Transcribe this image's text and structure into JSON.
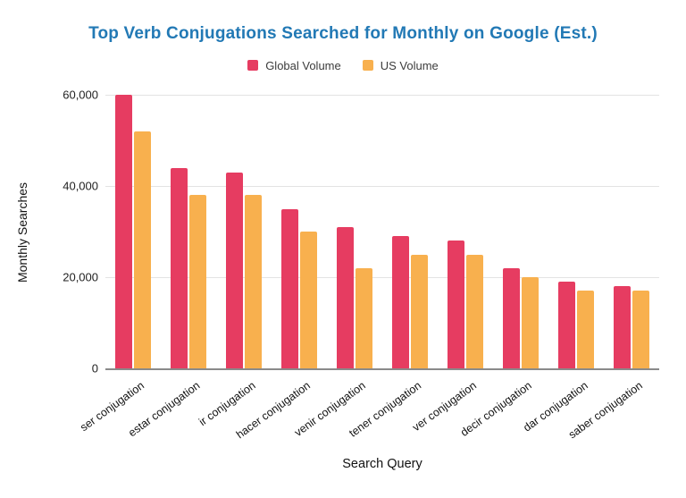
{
  "title_color": "#2279B5",
  "colors": {
    "global_bar": "#E63C61",
    "us_bar": "#F8B04E",
    "gridline": "#E3E3E3",
    "axis_line": "#8A8A8A",
    "title": "#2279B5"
  },
  "chart_data": {
    "type": "bar",
    "title": "Top Verb Conjugations Searched for Monthly on Google (Est.)",
    "xlabel": "Search Query",
    "ylabel": "Monthly Searches",
    "ylim": [
      0,
      60000
    ],
    "yticks": [
      0,
      20000,
      40000,
      60000
    ],
    "ytick_labels": [
      "0",
      "20,000",
      "40,000",
      "60,000"
    ],
    "grid": true,
    "legend_position": "top",
    "categories": [
      "ser conjugation",
      "estar conjugation",
      "ir conjugation",
      "hacer conjugation",
      "venir conjugation",
      "tener conjugation",
      "ver conjugation",
      "decir conjugation",
      "dar conjugation",
      "saber conjugation"
    ],
    "series": [
      {
        "name": "Global Volume",
        "color": "#E63C61",
        "values": [
          60000,
          44000,
          43000,
          35000,
          31000,
          29000,
          28000,
          22000,
          19000,
          18000
        ]
      },
      {
        "name": "US Volume",
        "color": "#F8B04E",
        "values": [
          52000,
          38000,
          38000,
          30000,
          22000,
          25000,
          25000,
          20000,
          17000,
          17000
        ]
      }
    ]
  }
}
